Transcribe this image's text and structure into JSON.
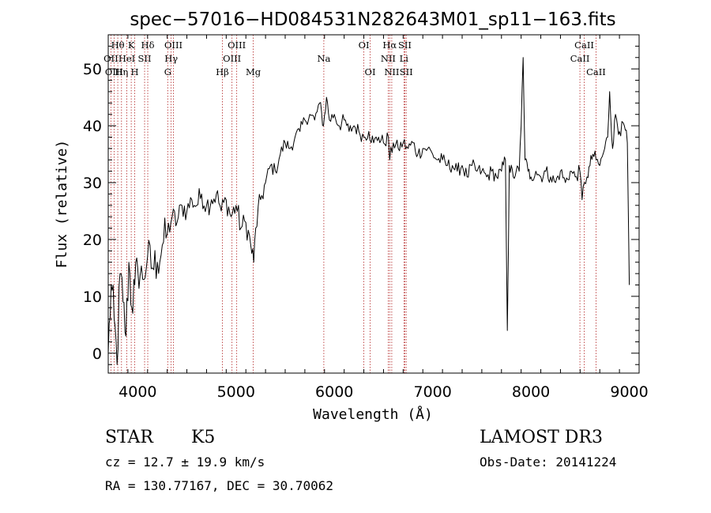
{
  "chart_data": {
    "type": "line",
    "title": "spec−57016−HD084531N282643M01_sp11−163.fits",
    "xlabel": "Wavelength (Å)",
    "ylabel": "Flux (relative)",
    "xlim": [
      3700,
      9100
    ],
    "ylim": [
      -3.5,
      56
    ],
    "xticks": [
      4000,
      5000,
      6000,
      7000,
      8000,
      9000
    ],
    "yticks": [
      0,
      10,
      20,
      30,
      40,
      50
    ],
    "grid": false,
    "legend": "none",
    "series": [
      {
        "name": "spectrum",
        "x": [
          3700,
          3730,
          3760,
          3790,
          3820,
          3850,
          3880,
          3910,
          3940,
          3970,
          4000,
          4050,
          4100,
          4150,
          4200,
          4250,
          4300,
          4350,
          4400,
          4450,
          4500,
          4550,
          4600,
          4650,
          4700,
          4750,
          4800,
          4850,
          4900,
          4950,
          5000,
          5050,
          5100,
          5150,
          5180,
          5200,
          5250,
          5300,
          5350,
          5400,
          5450,
          5500,
          5550,
          5600,
          5650,
          5700,
          5750,
          5800,
          5850,
          5890,
          5920,
          5950,
          6000,
          6050,
          6100,
          6150,
          6200,
          6250,
          6300,
          6350,
          6400,
          6450,
          6500,
          6550,
          6563,
          6600,
          6650,
          6700,
          6750,
          6800,
          6850,
          6900,
          6950,
          7000,
          7050,
          7100,
          7150,
          7200,
          7250,
          7300,
          7350,
          7400,
          7450,
          7500,
          7550,
          7600,
          7650,
          7700,
          7740,
          7760,
          7780,
          7820,
          7850,
          7880,
          7900,
          7920,
          7940,
          7970,
          8000,
          8050,
          8100,
          8150,
          8200,
          8250,
          8300,
          8350,
          8400,
          8450,
          8498,
          8520,
          8542,
          8570,
          8600,
          8630,
          8662,
          8700,
          8750,
          8780,
          8800,
          8830,
          8860,
          8900,
          8950,
          8980,
          9000
        ],
        "y": [
          0,
          12,
          6,
          -2,
          14,
          9,
          3,
          16,
          8,
          12,
          15,
          13,
          17,
          15,
          16,
          19,
          21,
          24,
          23,
          26,
          25,
          27,
          26,
          28,
          26,
          27,
          28,
          25,
          27,
          24,
          26,
          22,
          23,
          19,
          16,
          22,
          27,
          30,
          33,
          32,
          35,
          37,
          36,
          38,
          39,
          41,
          42,
          41,
          44,
          40,
          45,
          41,
          42,
          40,
          41,
          39,
          40,
          39,
          38,
          39,
          37,
          38,
          37,
          38,
          34,
          37,
          36,
          37,
          36,
          37,
          35,
          36,
          36,
          35,
          34,
          34,
          33,
          33,
          32,
          33,
          31,
          33,
          32,
          32,
          31,
          32,
          31,
          32,
          34,
          4,
          33,
          31,
          32,
          32,
          40,
          52,
          34,
          32,
          31,
          32,
          31,
          32,
          31,
          30,
          32,
          30,
          32,
          31,
          32,
          27,
          30,
          31,
          33,
          35,
          34,
          33,
          36,
          38,
          46,
          36,
          42,
          39,
          40,
          37,
          12
        ]
      }
    ],
    "line_markers": [
      {
        "label": "Hθ",
        "wavelength": 3797,
        "row": 0
      },
      {
        "label": "OII",
        "wavelength": 3727,
        "row": 1
      },
      {
        "label": "OIII",
        "wavelength": 3760,
        "row": 2
      },
      {
        "label": "HeI",
        "wavelength": 3889,
        "row": 1
      },
      {
        "label": "Hη",
        "wavelength": 3835,
        "row": 2
      },
      {
        "label": "K",
        "wavelength": 3934,
        "row": 0
      },
      {
        "label": "H",
        "wavelength": 3969,
        "row": 2
      },
      {
        "label": "SII",
        "wavelength": 4070,
        "row": 1
      },
      {
        "label": "Hδ",
        "wavelength": 4102,
        "row": 0
      },
      {
        "label": "OIII",
        "wavelength": 4363,
        "row": 0
      },
      {
        "label": "Hγ",
        "wavelength": 4340,
        "row": 1
      },
      {
        "label": "G",
        "wavelength": 4305,
        "row": 2
      },
      {
        "label": "Hβ",
        "wavelength": 4861,
        "row": 2
      },
      {
        "label": "OIII",
        "wavelength": 5007,
        "row": 0
      },
      {
        "label": "OIII",
        "wavelength": 4959,
        "row": 1
      },
      {
        "label": "Mg",
        "wavelength": 5175,
        "row": 2
      },
      {
        "label": "Na",
        "wavelength": 5893,
        "row": 1
      },
      {
        "label": "OI",
        "wavelength": 6300,
        "row": 0
      },
      {
        "label": "OI",
        "wavelength": 6364,
        "row": 2
      },
      {
        "label": "Hα",
        "wavelength": 6563,
        "row": 0
      },
      {
        "label": "NII",
        "wavelength": 6548,
        "row": 1
      },
      {
        "label": "NII",
        "wavelength": 6584,
        "row": 2
      },
      {
        "label": "SII",
        "wavelength": 6717,
        "row": 0
      },
      {
        "label": "Li",
        "wavelength": 6708,
        "row": 1
      },
      {
        "label": "SII",
        "wavelength": 6731,
        "row": 2
      },
      {
        "label": "CaII",
        "wavelength": 8542,
        "row": 0
      },
      {
        "label": "CaII",
        "wavelength": 8498,
        "row": 1
      },
      {
        "label": "CaII",
        "wavelength": 8662,
        "row": 2
      }
    ]
  },
  "info": {
    "class_label": "STAR",
    "subclass_label": "K5",
    "survey_label": "LAMOST DR3",
    "redshift_text": "cz = 12.7 ± 19.9 km/s",
    "obsdate_text": "Obs-Date: 20141224",
    "coords_text": "RA = 130.77167, DEC =  30.70062"
  }
}
